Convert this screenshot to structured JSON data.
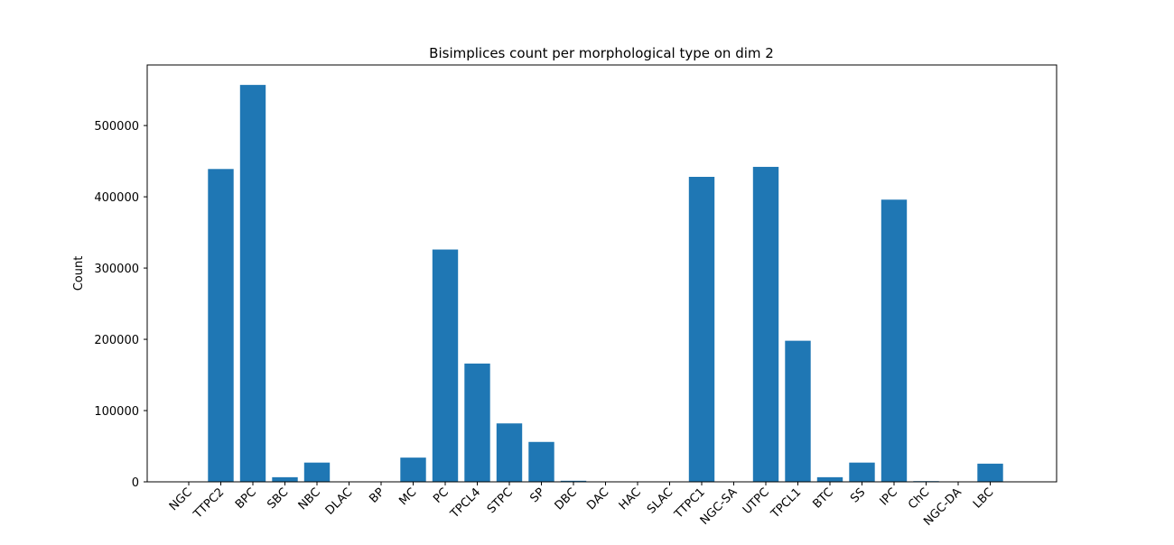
{
  "chart_data": {
    "type": "bar",
    "title": "Bisimplices count per morphological type on dim 2",
    "xlabel": "",
    "ylabel": "Count",
    "ylim": [
      0,
      585000
    ],
    "yticks": [
      0,
      100000,
      200000,
      300000,
      400000,
      500000
    ],
    "grid": false,
    "bar_color": "#1f77b4",
    "categories": [
      "NGC",
      "TTPC2",
      "BPC",
      "SBC",
      "NBC",
      "DLAC",
      "BP",
      "MC",
      "PC",
      "TPCL4",
      "STPC",
      "SP",
      "DBC",
      "DAC",
      "HAC",
      "SLAC",
      "TTPC1",
      "NGC-SA",
      "UTPC",
      "TPCL1",
      "BTC",
      "SS",
      "IPC",
      "ChC",
      "NGC-DA",
      "LBC"
    ],
    "values": [
      0,
      439000,
      557000,
      6500,
      27000,
      0,
      0,
      34000,
      326000,
      166000,
      82000,
      56000,
      1500,
      0,
      0,
      0,
      428000,
      0,
      442000,
      198000,
      6500,
      27000,
      396000,
      1000,
      0,
      25500
    ]
  }
}
